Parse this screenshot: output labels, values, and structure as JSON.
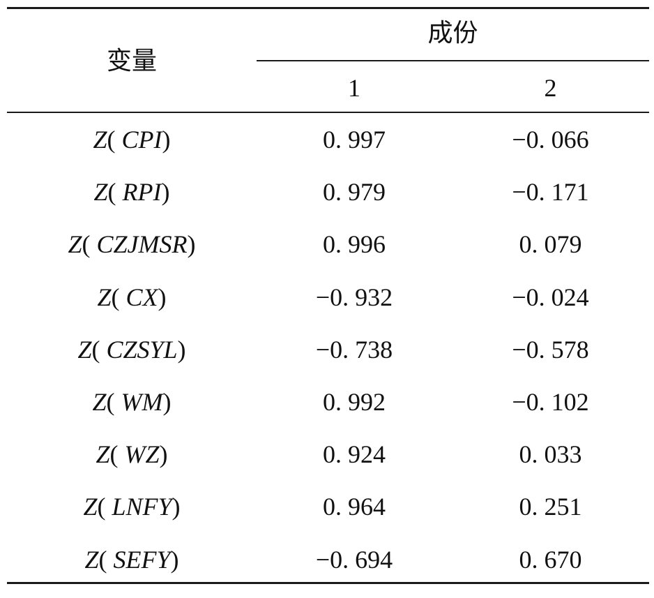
{
  "table": {
    "header_variable": "变量",
    "header_group": "成份",
    "subheaders": [
      "1",
      "2"
    ],
    "rows": [
      {
        "func": "Z",
        "arg": "CPI",
        "c1": "0. 997",
        "c2": "−0. 066"
      },
      {
        "func": "Z",
        "arg": "RPI",
        "c1": "0. 979",
        "c2": "−0. 171"
      },
      {
        "func": "Z",
        "arg": "CZJMSR",
        "c1": "0. 996",
        "c2": "0. 079"
      },
      {
        "func": "Z",
        "arg": "CX",
        "c1": "−0. 932",
        "c2": "−0. 024"
      },
      {
        "func": "Z",
        "arg": "CZSYL",
        "c1": "−0. 738",
        "c2": "−0. 578"
      },
      {
        "func": "Z",
        "arg": "WM",
        "c1": "0. 992",
        "c2": "−0. 102"
      },
      {
        "func": "Z",
        "arg": "WZ",
        "c1": "0. 924",
        "c2": "0. 033"
      },
      {
        "func": "Z",
        "arg": "LNFY",
        "c1": "0. 964",
        "c2": "0. 251"
      },
      {
        "func": "Z",
        "arg": "SEFY",
        "c1": "−0. 694",
        "c2": "0. 670"
      }
    ]
  }
}
